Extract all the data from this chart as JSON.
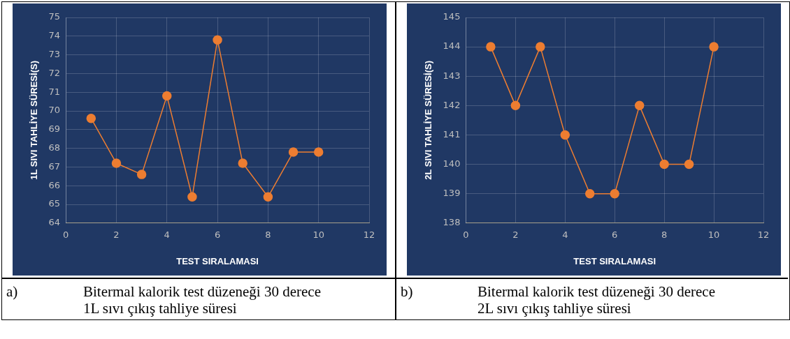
{
  "chart_data": [
    {
      "type": "line",
      "xlabel": "TEST SIRALAMASI",
      "ylabel": "1L SIVI TAHLİYE SÜRESİ(S)",
      "x": [
        1,
        2,
        3,
        4,
        5,
        6,
        7,
        8,
        9,
        10
      ],
      "series": [
        {
          "color": "#ed7d31",
          "values": [
            69.6,
            67.2,
            66.6,
            70.8,
            65.4,
            73.8,
            67.2,
            65.4,
            67.8,
            67.8
          ]
        }
      ],
      "xlim": [
        0,
        12
      ],
      "xticks": [
        0,
        2,
        4,
        6,
        8,
        10,
        12
      ],
      "ylim": [
        64,
        75
      ],
      "yticks": [
        64,
        65,
        66,
        67,
        68,
        69,
        70,
        71,
        72,
        73,
        74,
        75
      ],
      "grid": true,
      "marker": "circle",
      "line_style": "solid",
      "annotations": [
        "a)",
        "Bitermal kalorik test düzeneği 30 derece 1L sıvı çıkış tahliye süresi"
      ]
    },
    {
      "type": "line",
      "xlabel": "TEST SIRALAMASI",
      "ylabel": "2L SIVI TAHLİYE SÜRESİ(S)",
      "x": [
        1,
        2,
        3,
        4,
        5,
        6,
        7,
        8,
        9,
        10
      ],
      "series": [
        {
          "color": "#ed7d31",
          "values": [
            144,
            142,
            144,
            141,
            139,
            139,
            142,
            140,
            140,
            144
          ]
        }
      ],
      "xlim": [
        0,
        12
      ],
      "xticks": [
        0,
        2,
        4,
        6,
        8,
        10,
        12
      ],
      "ylim": [
        138,
        145
      ],
      "yticks": [
        138,
        139,
        140,
        141,
        142,
        143,
        144,
        145
      ],
      "grid": true,
      "marker": "circle",
      "line_style": "solid",
      "annotations": [
        "b)",
        "Bitermal kalorik test düzeneği 30 derece 2L sıvı çıkış tahliye süresi"
      ]
    }
  ]
}
